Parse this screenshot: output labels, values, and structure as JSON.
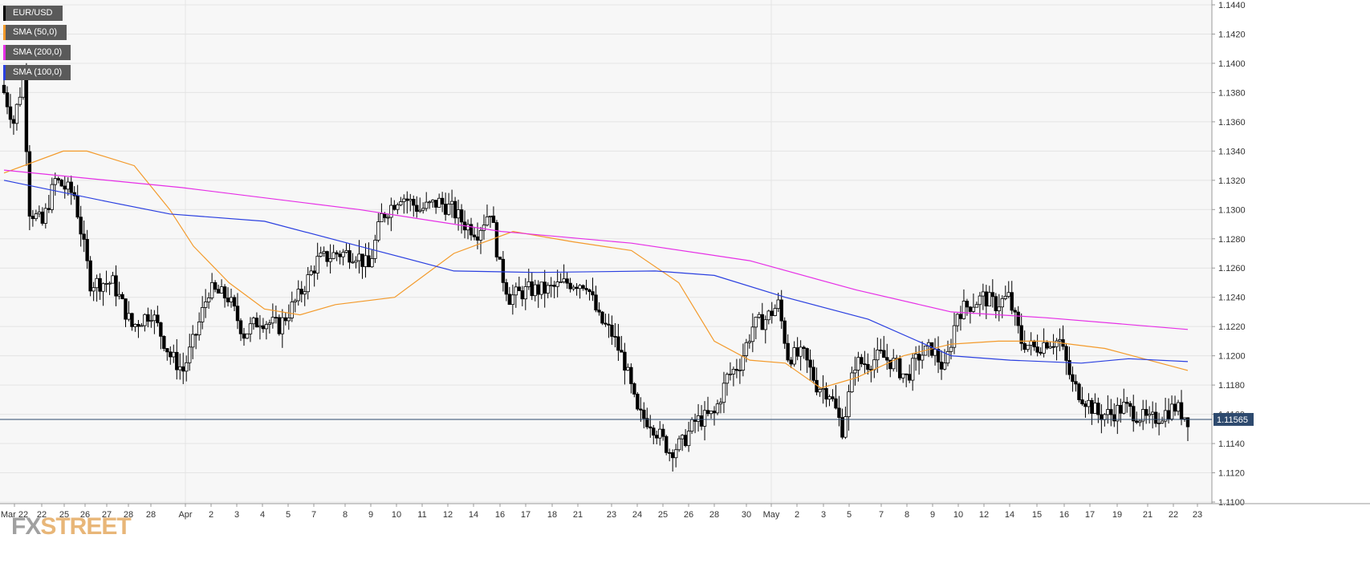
{
  "legend": [
    {
      "label": "EUR/USD",
      "color": "#000000"
    },
    {
      "label": "SMA (50,0)",
      "color": "#f39a2b"
    },
    {
      "label": "SMA (200,0)",
      "color": "#e62ee6"
    },
    {
      "label": "SMA (100,0)",
      "color": "#2a3fe0"
    }
  ],
  "logo": {
    "fx": "FX",
    "street": "STREET"
  },
  "price_tag": "1.11565",
  "chart_data": {
    "type": "candlestick",
    "title": "",
    "series_name": "EUR/USD",
    "y_ticks": [
      "1.1440",
      "1.1420",
      "1.1400",
      "1.1380",
      "1.1360",
      "1.1340",
      "1.1320",
      "1.1300",
      "1.1280",
      "1.1260",
      "1.1240",
      "1.1220",
      "1.1200",
      "1.1180",
      "1.1160",
      "1.1140",
      "1.1120",
      "1.1100"
    ],
    "ylim": [
      1.11,
      1.144
    ],
    "x_ticks": [
      "Mar 22",
      "22",
      "25",
      "26",
      "27",
      "28",
      "28",
      "Apr",
      "2",
      "3",
      "4",
      "5",
      "7",
      "8",
      "9",
      "10",
      "11",
      "12",
      "14",
      "16",
      "17",
      "18",
      "21",
      "23",
      "24",
      "25",
      "26",
      "28",
      "30",
      "May",
      "2",
      "3",
      "5",
      "7",
      "8",
      "9",
      "10",
      "12",
      "14",
      "15",
      "16",
      "17",
      "19",
      "21",
      "22",
      "23"
    ],
    "grid": true,
    "current_price": 1.11565,
    "close_anchors": [
      [
        0,
        1.138
      ],
      [
        3,
        1.136
      ],
      [
        6,
        1.139
      ],
      [
        8,
        1.13
      ],
      [
        12,
        1.129
      ],
      [
        16,
        1.132
      ],
      [
        22,
        1.131
      ],
      [
        27,
        1.125
      ],
      [
        34,
        1.125
      ],
      [
        40,
        1.122
      ],
      [
        46,
        1.123
      ],
      [
        52,
        1.12
      ],
      [
        56,
        1.119
      ],
      [
        60,
        1.1215
      ],
      [
        64,
        1.1245
      ],
      [
        70,
        1.124
      ],
      [
        75,
        1.1215
      ],
      [
        80,
        1.1225
      ],
      [
        86,
        1.122
      ],
      [
        92,
        1.124
      ],
      [
        98,
        1.1265
      ],
      [
        104,
        1.127
      ],
      [
        110,
        1.127
      ],
      [
        114,
        1.126
      ],
      [
        118,
        1.1295
      ],
      [
        124,
        1.131
      ],
      [
        130,
        1.13
      ],
      [
        136,
        1.1305
      ],
      [
        140,
        1.13
      ],
      [
        144,
        1.129
      ],
      [
        148,
        1.1285
      ],
      [
        152,
        1.13
      ],
      [
        155,
        1.126
      ],
      [
        158,
        1.124
      ],
      [
        164,
        1.1245
      ],
      [
        170,
        1.1245
      ],
      [
        176,
        1.125
      ],
      [
        182,
        1.125
      ],
      [
        186,
        1.1225
      ],
      [
        190,
        1.1215
      ],
      [
        194,
        1.1195
      ],
      [
        198,
        1.116
      ],
      [
        202,
        1.1155
      ],
      [
        208,
        1.1135
      ],
      [
        212,
        1.114
      ],
      [
        216,
        1.1155
      ],
      [
        222,
        1.116
      ],
      [
        226,
        1.1185
      ],
      [
        230,
        1.1195
      ],
      [
        234,
        1.122
      ],
      [
        238,
        1.1225
      ],
      [
        242,
        1.1235
      ],
      [
        245,
        1.12
      ],
      [
        250,
        1.12
      ],
      [
        254,
        1.118
      ],
      [
        258,
        1.1175
      ],
      [
        262,
        1.115
      ],
      [
        266,
        1.1195
      ],
      [
        270,
        1.1195
      ],
      [
        274,
        1.12
      ],
      [
        278,
        1.1195
      ],
      [
        282,
        1.1185
      ],
      [
        286,
        1.12
      ],
      [
        290,
        1.1205
      ],
      [
        294,
        1.119
      ],
      [
        298,
        1.123
      ],
      [
        302,
        1.1235
      ],
      [
        306,
        1.124
      ],
      [
        310,
        1.1235
      ],
      [
        314,
        1.124
      ],
      [
        318,
        1.121
      ],
      [
        322,
        1.1205
      ],
      [
        326,
        1.121
      ],
      [
        330,
        1.121
      ],
      [
        334,
        1.118
      ],
      [
        338,
        1.117
      ],
      [
        342,
        1.116
      ],
      [
        346,
        1.116
      ],
      [
        350,
        1.1165
      ],
      [
        354,
        1.116
      ],
      [
        358,
        1.1155
      ],
      [
        362,
        1.116
      ],
      [
        366,
        1.1165
      ],
      [
        370,
        1.1157
      ]
    ],
    "sma": [
      {
        "name": "SMA (50,0)",
        "color": "#f39a2b",
        "points": [
          [
            1.1325,
            0
          ],
          [
            1.134,
            0.05
          ],
          [
            1.134,
            0.07
          ],
          [
            1.133,
            0.11
          ],
          [
            1.13,
            0.14
          ],
          [
            1.1275,
            0.16
          ],
          [
            1.125,
            0.19
          ],
          [
            1.1232,
            0.22
          ],
          [
            1.1228,
            0.25
          ],
          [
            1.1235,
            0.28
          ],
          [
            1.124,
            0.33
          ],
          [
            1.127,
            0.38
          ],
          [
            1.1285,
            0.43
          ],
          [
            1.1278,
            0.48
          ],
          [
            1.1272,
            0.53
          ],
          [
            1.125,
            0.57
          ],
          [
            1.121,
            0.6
          ],
          [
            1.1197,
            0.63
          ],
          [
            1.1195,
            0.66
          ],
          [
            1.1178,
            0.69
          ],
          [
            1.1185,
            0.72
          ],
          [
            1.12,
            0.76
          ],
          [
            1.1208,
            0.8
          ],
          [
            1.121,
            0.84
          ],
          [
            1.121,
            0.88
          ],
          [
            1.1205,
            0.93
          ],
          [
            1.119,
            1.0
          ]
        ]
      },
      {
        "name": "SMA (200,0)",
        "color": "#e62ee6",
        "points": [
          [
            1.1327,
            0
          ],
          [
            1.1315,
            0.15
          ],
          [
            1.13,
            0.3
          ],
          [
            1.1285,
            0.42
          ],
          [
            1.1277,
            0.53
          ],
          [
            1.1265,
            0.63
          ],
          [
            1.1245,
            0.72
          ],
          [
            1.123,
            0.8
          ],
          [
            1.1226,
            0.88
          ],
          [
            1.1218,
            1.0
          ]
        ]
      },
      {
        "name": "SMA (100,0)",
        "color": "#2a3fe0",
        "points": [
          [
            1.132,
            0
          ],
          [
            1.1305,
            0.09
          ],
          [
            1.1297,
            0.14
          ],
          [
            1.1292,
            0.22
          ],
          [
            1.1275,
            0.3
          ],
          [
            1.1258,
            0.38
          ],
          [
            1.1257,
            0.45
          ],
          [
            1.1258,
            0.55
          ],
          [
            1.1255,
            0.6
          ],
          [
            1.124,
            0.66
          ],
          [
            1.1225,
            0.73
          ],
          [
            1.12,
            0.8
          ],
          [
            1.1197,
            0.85
          ],
          [
            1.1195,
            0.91
          ],
          [
            1.1198,
            0.95
          ],
          [
            1.1196,
            1.0
          ]
        ]
      }
    ]
  }
}
